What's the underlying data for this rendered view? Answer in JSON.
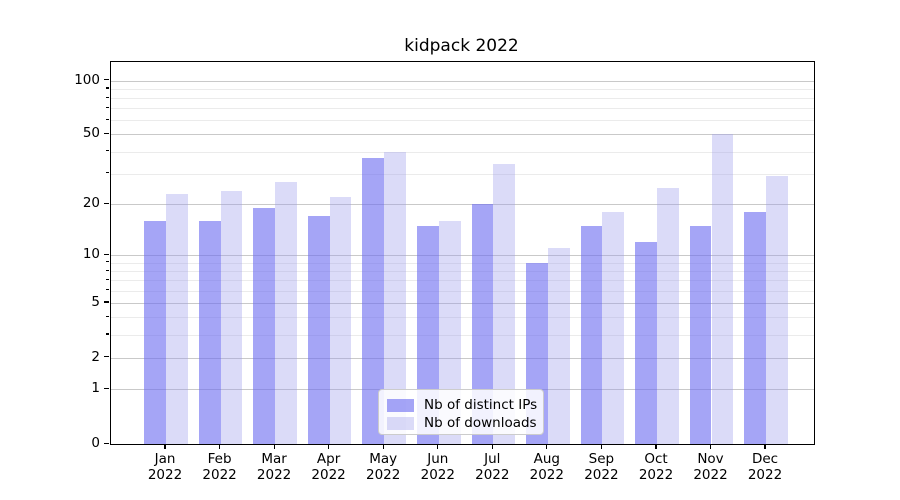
{
  "chart_data": {
    "type": "bar",
    "title": "kidpack 2022",
    "categories": [
      "Jan",
      "Feb",
      "Mar",
      "Apr",
      "May",
      "Jun",
      "Jul",
      "Aug",
      "Sep",
      "Oct",
      "Nov",
      "Dec"
    ],
    "year_label": "2022",
    "series": [
      {
        "name": "Nb of distinct IPs",
        "color": "rgba(109,109,240,0.62)",
        "values": [
          16,
          16,
          19,
          17,
          37,
          15,
          20,
          9,
          15,
          12,
          15,
          18
        ]
      },
      {
        "name": "Nb of downloads",
        "color": "rgba(155,155,235,0.36)",
        "values": [
          23,
          24,
          27,
          22,
          40,
          16,
          34,
          11,
          18,
          25,
          50,
          29
        ]
      }
    ],
    "xlabel": "",
    "ylabel": "",
    "yscale": "log1p",
    "ylim": [
      0,
      127
    ],
    "yticks": [
      0,
      1,
      2,
      5,
      10,
      20,
      50,
      100
    ],
    "minor_yticks": [
      3,
      4,
      6,
      7,
      8,
      9,
      30,
      40,
      60,
      70,
      80,
      90
    ],
    "grid": "horizontal",
    "legend_position": "lower-center",
    "colors": {
      "axis": "#000000",
      "major_grid": "#c9c9c9",
      "minor_grid": "#ebebeb",
      "background": "#ffffff"
    }
  }
}
